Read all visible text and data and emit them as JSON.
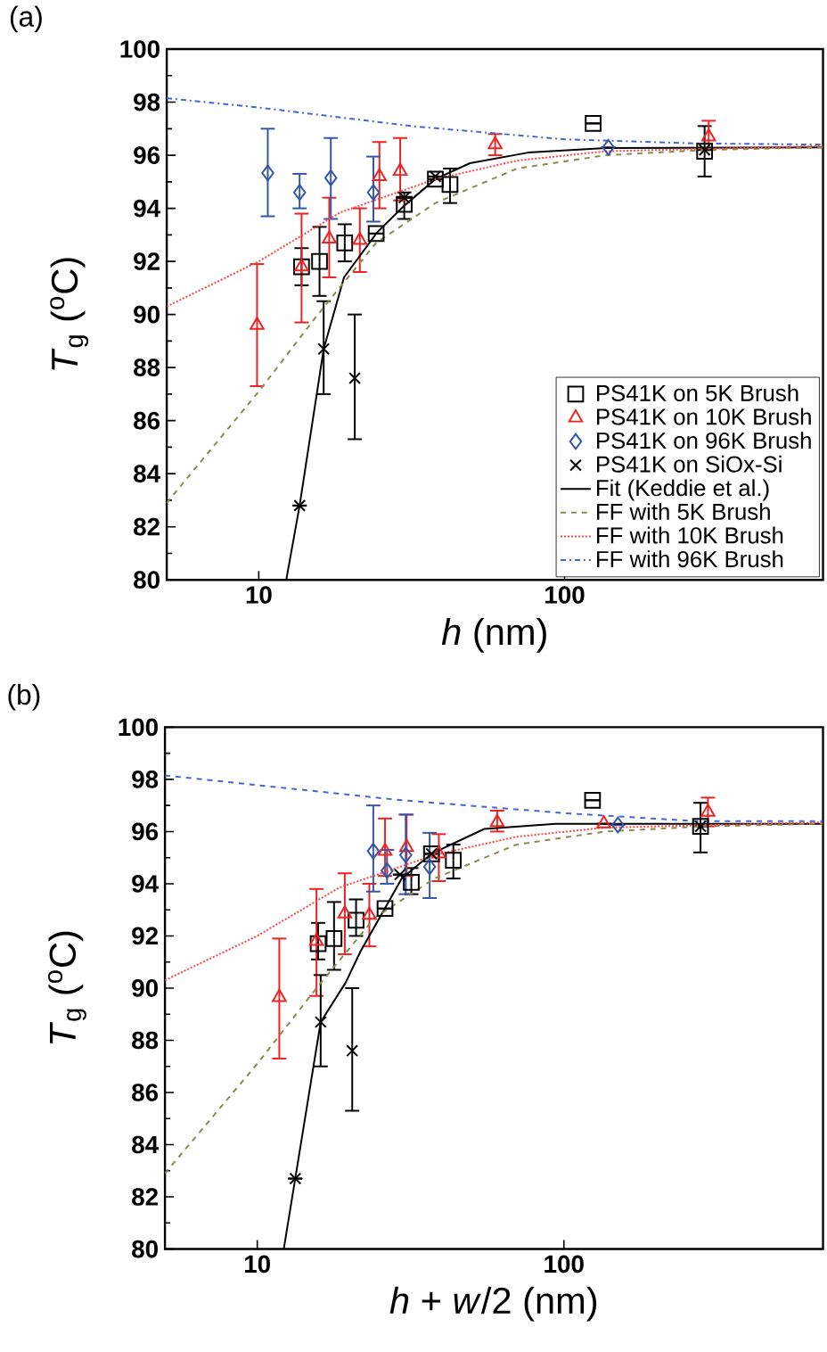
{
  "chart_data": [
    {
      "type": "scatter",
      "title": "(a)",
      "xlabel": "*h* (nm)",
      "ylabel": "*T*$_{g}$ ($^{o}$C)",
      "log": "x",
      "xlim": [
        5,
        700
      ],
      "ylim": [
        80,
        100
      ],
      "xticks": [
        10,
        100
      ],
      "yticks": [
        80,
        82,
        84,
        86,
        88,
        90,
        92,
        94,
        96,
        98,
        100
      ],
      "legend": "bottom right",
      "grid": false,
      "series": [
        {
          "name": "PS41K on 5K Brush",
          "color": "#000000",
          "marker": "square",
          "x": [
            13.8,
            15.8,
            19.1,
            24.2,
            29.9,
            37.8,
            42.2,
            124,
            287
          ],
          "values": [
            91.8,
            92.0,
            92.7,
            93.05,
            94.15,
            95.1,
            94.9,
            97.2,
            96.15
          ],
          "errors": [
            [
              91.1,
              92.5
            ],
            [
              90.7,
              93.3
            ],
            [
              92.0,
              93.4
            ],
            null,
            [
              93.6,
              94.6
            ],
            null,
            [
              94.2,
              95.5
            ],
            null,
            [
              95.2,
              97.1
            ]
          ]
        },
        {
          "name": "PS41K on 10K Brush",
          "color": "#ee2222",
          "marker": "triangle",
          "x": [
            9.87,
            13.8,
            17.0,
            21.4,
            24.8,
            29.0,
            37.4,
            59.3,
            296
          ],
          "values": [
            89.6,
            91.8,
            92.85,
            92.8,
            95.2,
            95.4,
            null,
            96.4,
            96.7
          ],
          "errors": [
            [
              87.3,
              91.9
            ],
            [
              89.7,
              93.8
            ],
            [
              91.4,
              94.4
            ],
            [
              91.6,
              94.0
            ],
            [
              94.0,
              96.5
            ],
            [
              94.3,
              96.65
            ],
            null,
            [
              96.0,
              96.8
            ],
            [
              96.2,
              97.3
            ]
          ]
        },
        {
          "name": "PS41K on 96K Brush",
          "color": "#3355aa",
          "marker": "diamond",
          "x": [
            10.7,
            13.6,
            17.2,
            23.7,
            139
          ],
          "values": [
            95.33,
            94.6,
            95.15,
            94.6,
            96.3
          ],
          "errors": [
            [
              93.7,
              97.0
            ],
            [
              94.0,
              95.3
            ],
            [
              93.6,
              96.65
            ],
            [
              93.5,
              95.95
            ],
            null
          ]
        },
        {
          "name": "PS41K on SiOx-Si",
          "color": "#000000",
          "marker": "cross",
          "x": [
            13.6,
            16.3,
            20.6,
            29.9,
            37.8,
            287
          ],
          "values": [
            82.8,
            88.7,
            87.6,
            94.4,
            95.2,
            96.2
          ],
          "errors": [
            null,
            [
              87.0,
              90.5
            ],
            [
              85.3,
              90.0
            ],
            null,
            null,
            null
          ]
        },
        {
          "name": "Fit (Keddie et al.)",
          "type": "line",
          "color": "#000000",
          "line_style": "solid",
          "x": [
            12.3,
            13.6,
            16.3,
            19.0,
            24.4,
            29.9,
            37.8,
            49,
            76,
            136,
            700
          ],
          "values": [
            80,
            82.8,
            88.7,
            91.4,
            93.1,
            94.1,
            95.1,
            95.7,
            96.1,
            96.27,
            96.3
          ]
        },
        {
          "name": "FF with 5K Brush",
          "type": "line",
          "color": "#8a8a4a",
          "line_style": "dashed",
          "x": [
            5,
            10,
            15.6,
            18.5,
            24.2,
            37.8,
            70,
            136,
            287,
            700
          ],
          "values": [
            82.9,
            87.1,
            90.0,
            91.05,
            92.7,
            94.2,
            95.5,
            96.0,
            96.2,
            96.3
          ]
        },
        {
          "name": "FF with 10K Brush",
          "type": "line",
          "color": "#ff4444",
          "line_style": "dotted",
          "x": [
            5,
            10,
            18.5,
            37.8,
            70,
            136,
            700
          ],
          "values": [
            90.3,
            92.0,
            93.85,
            95.1,
            95.8,
            96.15,
            96.35
          ]
        },
        {
          "name": "FF with 96K Brush",
          "type": "line",
          "color": "#4466cc",
          "line_style": "dashdotted",
          "x": [
            5,
            10,
            31.6,
            100,
            264,
            700
          ],
          "values": [
            98.15,
            97.8,
            97.1,
            96.6,
            96.45,
            96.4
          ]
        }
      ]
    },
    {
      "type": "scatter",
      "title": "(b)",
      "xlabel": "*h* + *w*/2 (nm)",
      "ylabel": "*T*$_{g}$ ($^{o}$C)",
      "log": "x",
      "xlim": [
        5,
        700
      ],
      "ylim": [
        80,
        100
      ],
      "xticks": [
        10,
        100
      ],
      "yticks": [
        80,
        82,
        84,
        86,
        88,
        90,
        92,
        94,
        96,
        98,
        100
      ],
      "grid": false,
      "series": [
        {
          "color": "#000000",
          "marker": "square",
          "x": [
            15.8,
            17.8,
            21.0,
            26.1,
            31.8,
            37.0,
            43.6,
            124,
            279
          ],
          "values": [
            91.7,
            91.9,
            92.6,
            93.05,
            94.05,
            95.15,
            94.9,
            97.2,
            96.2
          ],
          "errors": [
            [
              91.1,
              92.5
            ],
            [
              90.7,
              93.3
            ],
            [
              92.0,
              93.4
            ],
            null,
            [
              93.6,
              94.6
            ],
            null,
            [
              94.2,
              95.5
            ],
            null,
            [
              95.2,
              97.1
            ]
          ]
        },
        {
          "color": "#ee2222",
          "marker": "triangle",
          "x": [
            11.8,
            15.6,
            19.3,
            23.2,
            26.1,
            30.7,
            39.1,
            60.6,
            135,
            295
          ],
          "values": [
            89.65,
            91.8,
            92.85,
            92.8,
            95.25,
            95.4,
            95.15,
            96.35,
            96.3,
            96.75
          ],
          "errors": [
            [
              87.3,
              91.9
            ],
            [
              89.7,
              93.8
            ],
            [
              91.3,
              94.4
            ],
            [
              91.6,
              94.0
            ],
            [
              94.3,
              96.5
            ],
            [
              94.3,
              96.65
            ],
            [
              94.1,
              95.9
            ],
            [
              96.0,
              96.8
            ],
            null,
            [
              96.2,
              97.3
            ]
          ]
        },
        {
          "color": "#3355aa",
          "marker": "diamond",
          "x": [
            23.9,
            26.5,
            30.5,
            36.5,
            150
          ],
          "values": [
            95.25,
            94.5,
            95.1,
            94.65,
            96.25
          ],
          "errors": [
            [
              93.7,
              97.0
            ],
            [
              94.0,
              95.3
            ],
            [
              93.6,
              96.65
            ],
            [
              93.45,
              95.95
            ],
            null
          ]
        },
        {
          "color": "#000000",
          "marker": "cross",
          "x": [
            13.3,
            16.1,
            20.4,
            29.2,
            37.0,
            279
          ],
          "values": [
            82.7,
            88.7,
            87.6,
            94.35,
            95.15,
            96.2
          ],
          "errors": [
            null,
            [
              87.0,
              90.5
            ],
            [
              85.3,
              90.0
            ],
            null,
            null,
            null
          ]
        },
        {
          "type": "line",
          "color": "#000000",
          "line_style": "solid",
          "x": [
            12.2,
            13.3,
            16.1,
            19.4,
            21.7,
            29.6,
            37,
            55,
            94,
            700
          ],
          "values": [
            80,
            82.7,
            88.7,
            90.2,
            91.4,
            94.2,
            95.15,
            96.1,
            96.3,
            96.3
          ]
        },
        {
          "type": "line",
          "color": "#8a8a4a",
          "line_style": "dashed",
          "x": [
            5,
            10,
            15.6,
            18.5,
            24.2,
            37.8,
            70,
            136,
            287,
            700
          ],
          "values": [
            82.9,
            87.1,
            90.0,
            91.05,
            92.7,
            94.2,
            95.5,
            96.0,
            96.2,
            96.3
          ]
        },
        {
          "type": "line",
          "color": "#ff4444",
          "line_style": "dotted",
          "x": [
            5,
            10,
            18.5,
            37.8,
            70,
            136,
            700
          ],
          "values": [
            90.3,
            92.0,
            93.85,
            95.1,
            95.8,
            96.15,
            96.35
          ]
        },
        {
          "type": "line",
          "color": "#4466cc",
          "line_style": "dashed",
          "x": [
            5,
            29.6,
            102,
            270,
            700
          ],
          "values": [
            98.15,
            97.2,
            96.7,
            96.4,
            96.4
          ]
        }
      ]
    }
  ]
}
